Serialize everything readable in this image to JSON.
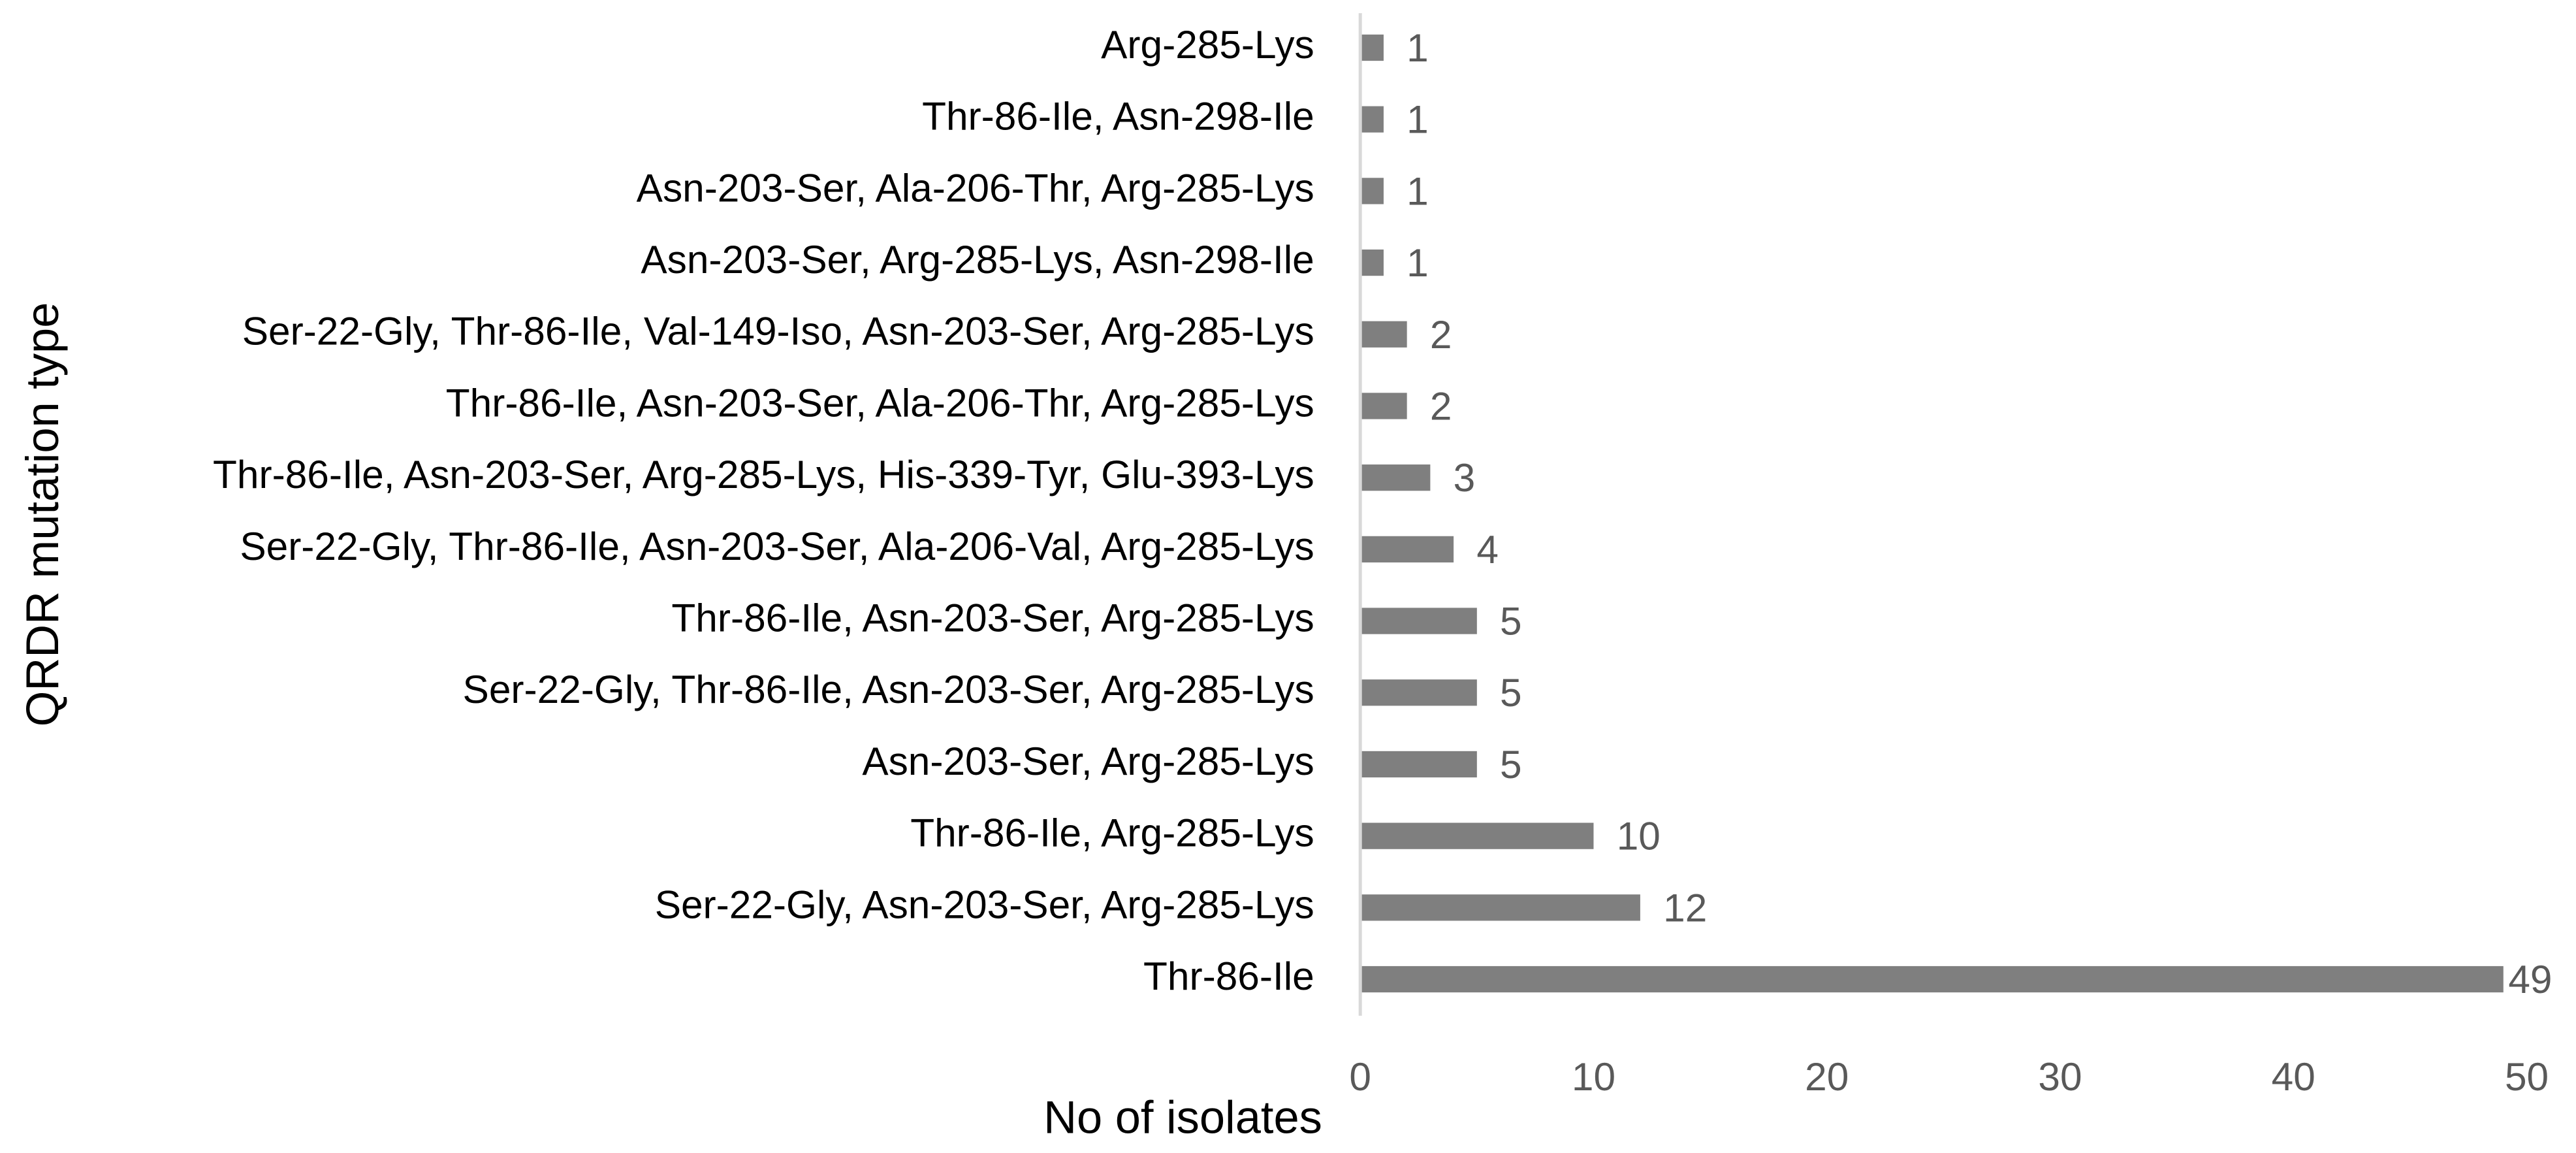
{
  "chart_data": {
    "type": "bar",
    "orientation": "horizontal",
    "x_label": "No of isolates",
    "y_label": "QRDR mutation type",
    "categories": [
      "Arg-285-Lys",
      "Thr-86-Ile, Asn-298-Ile",
      "Asn-203-Ser, Ala-206-Thr, Arg-285-Lys",
      "Asn-203-Ser, Arg-285-Lys, Asn-298-Ile",
      "Ser-22-Gly, Thr-86-Ile, Val-149-Iso, Asn-203-Ser, Arg-285-Lys",
      "Thr-86-Ile, Asn-203-Ser, Ala-206-Thr, Arg-285-Lys",
      "Thr-86-Ile, Asn-203-Ser, Arg-285-Lys, His-339-Tyr, Glu-393-Lys",
      "Ser-22-Gly, Thr-86-Ile, Asn-203-Ser, Ala-206-Val, Arg-285-Lys",
      "Thr-86-Ile, Asn-203-Ser, Arg-285-Lys",
      "Ser-22-Gly, Thr-86-Ile, Asn-203-Ser, Arg-285-Lys",
      "Asn-203-Ser, Arg-285-Lys",
      "Thr-86-Ile, Arg-285-Lys",
      "Ser-22-Gly, Asn-203-Ser, Arg-285-Lys",
      "Thr-86-Ile"
    ],
    "values": [
      1,
      1,
      1,
      1,
      2,
      2,
      3,
      4,
      5,
      5,
      5,
      10,
      12,
      49
    ],
    "color": "#7f7f7f",
    "xlim": [
      0,
      50
    ],
    "xticks": [
      0,
      10,
      20,
      30,
      40,
      50
    ]
  }
}
